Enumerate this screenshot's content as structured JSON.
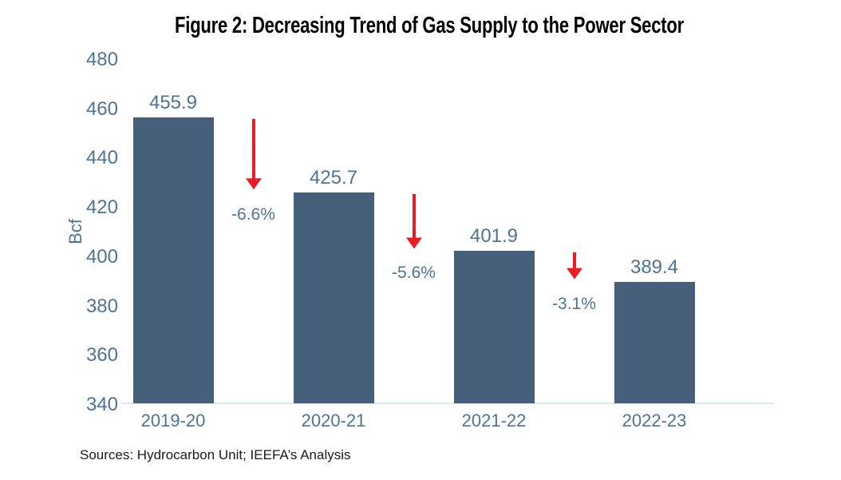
{
  "figure": {
    "title": "Figure 2: Decreasing Trend of Gas Supply to the Power Sector",
    "source_note": "Sources: Hydrocarbon Unit; IEEFA’s Analysis"
  },
  "chart_data": {
    "type": "bar",
    "title": "Figure 2: Decreasing Trend of Gas Supply to the Power Sector",
    "xlabel": "",
    "ylabel": "Bcf",
    "categories": [
      "2019-20",
      "2020-21",
      "2021-22",
      "2022-23"
    ],
    "values": [
      455.9,
      425.7,
      401.9,
      389.4
    ],
    "value_labels": [
      "455.9",
      "425.7",
      "401.9",
      "389.4"
    ],
    "change_labels": [
      "-6.6%",
      "-5.6%",
      "-3.1%"
    ],
    "ylim": [
      340,
      480
    ],
    "yticks": [
      480,
      460,
      440,
      420,
      400,
      380,
      360,
      340
    ],
    "ytick_step": 20,
    "grid": false,
    "legend_position": "none",
    "annotations": "red downward arrows between consecutive bars showing percent decline",
    "colors": {
      "bar": "#465f7a",
      "axis_label": "#4d7398",
      "arrow": "#ec1c24",
      "baseline": "#dde7ed",
      "title": "#000000",
      "source": "#1a1a1a"
    }
  }
}
